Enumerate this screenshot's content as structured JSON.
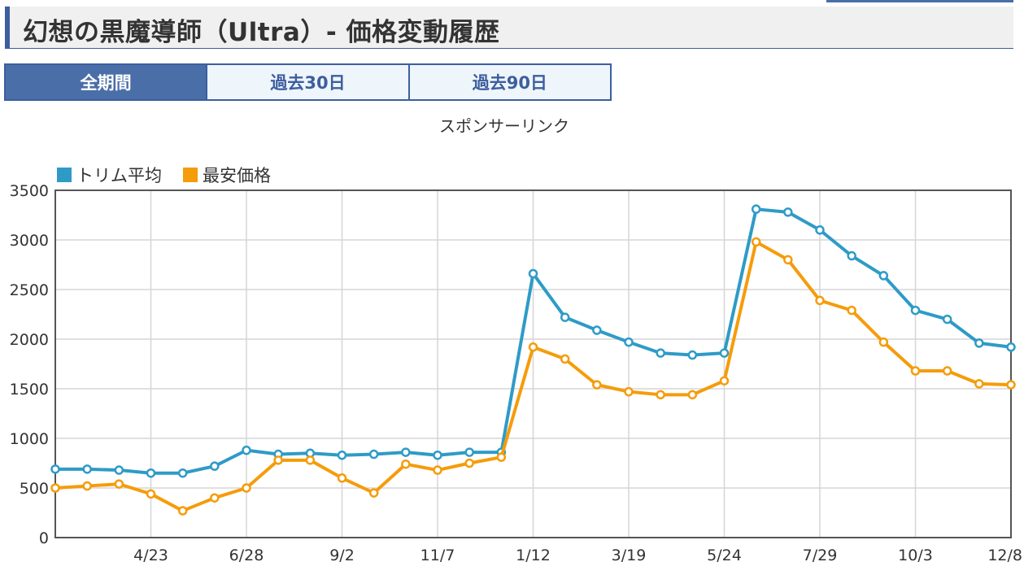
{
  "page": {
    "title": "幻想の黒魔導師（Ultra）- 価格変動履歴",
    "sponsor": "スポンサーリンク"
  },
  "tabs": [
    {
      "label": "全期間",
      "active": true
    },
    {
      "label": "過去30日",
      "active": false
    },
    {
      "label": "過去90日",
      "active": false
    }
  ],
  "colors": {
    "accent": "#3d5e9e",
    "series_avg": "#2e9bc7",
    "series_min": "#f59c0b"
  },
  "chart_data": {
    "type": "line",
    "x_tick_labels": [
      "4/23",
      "6/28",
      "9/2",
      "11/7",
      "1/12",
      "3/19",
      "5/24",
      "7/29",
      "10/3",
      "12/8"
    ],
    "y_ticks": [
      0,
      500,
      1000,
      1500,
      2000,
      2500,
      3000,
      3500
    ],
    "ylim": [
      0,
      3500
    ],
    "grid": true,
    "legend_placement": "top-left",
    "series": [
      {
        "name": "トリム平均",
        "color": "#2e9bc7",
        "values": [
          690,
          690,
          680,
          650,
          650,
          720,
          880,
          840,
          850,
          830,
          840,
          860,
          830,
          860,
          860,
          2660,
          2220,
          2090,
          1970,
          1860,
          1840,
          1860,
          3310,
          3280,
          3100,
          2840,
          2640,
          2290,
          2200,
          1960,
          1920
        ]
      },
      {
        "name": "最安価格",
        "color": "#f59c0b",
        "values": [
          500,
          520,
          540,
          440,
          270,
          400,
          500,
          780,
          780,
          600,
          450,
          740,
          680,
          750,
          810,
          1920,
          1800,
          1540,
          1470,
          1440,
          1440,
          1580,
          2980,
          2800,
          2390,
          2290,
          1970,
          1680,
          1680,
          1550,
          1540
        ]
      }
    ]
  }
}
